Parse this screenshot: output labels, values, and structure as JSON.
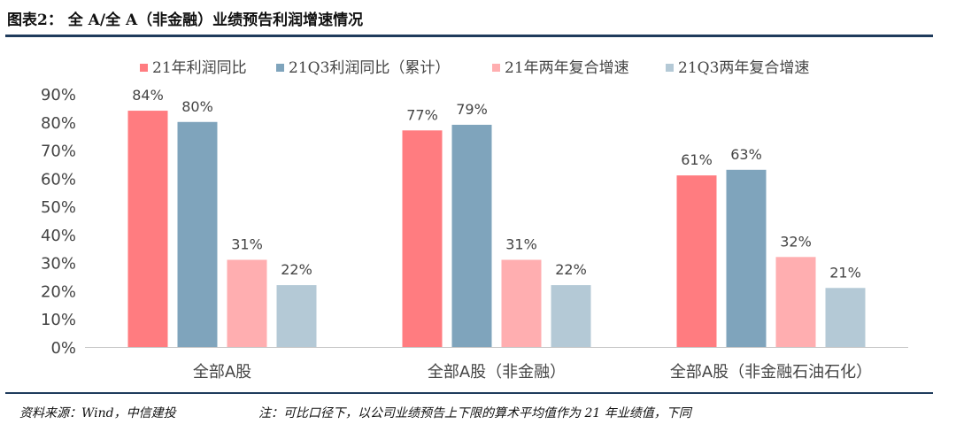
{
  "figure": {
    "title": "图表2： 全 A/全 A（非金融）业绩预告利润增速情况",
    "source": "资料来源：Wind，中信建投",
    "note": "注：可比口径下，以公司业绩预告上下限的算术平均值作为 21 年业绩值，下同"
  },
  "chart_data": {
    "type": "bar",
    "categories": [
      "全部A股",
      "全部A股（非金融）",
      "全部A股（非金融石油石化）"
    ],
    "series": [
      {
        "name": "21年利润同比",
        "values": [
          84,
          77,
          61
        ],
        "color": "#ff7c80"
      },
      {
        "name": "21Q3利润同比（累计）",
        "values": [
          80,
          79,
          63
        ],
        "color": "#7fa4bc"
      },
      {
        "name": "21年两年复合增速",
        "values": [
          31,
          31,
          32
        ],
        "color": "#ffaeb0"
      },
      {
        "name": "21Q3两年复合增速",
        "values": [
          22,
          22,
          21
        ],
        "color": "#b4c9d6"
      }
    ],
    "data_labels": [
      [
        "84%",
        "77%",
        "61%"
      ],
      [
        "80%",
        "79%",
        "63%"
      ],
      [
        "31%",
        "31%",
        "32%"
      ],
      [
        "22%",
        "22%",
        "21%"
      ]
    ],
    "y_ticks": [
      0,
      10,
      20,
      30,
      40,
      50,
      60,
      70,
      80,
      90
    ],
    "y_tick_labels": [
      "0%",
      "10%",
      "20%",
      "30%",
      "40%",
      "50%",
      "60%",
      "70%",
      "80%",
      "90%"
    ],
    "ylim": [
      0,
      90
    ],
    "legend_position": "top",
    "grid": false
  }
}
